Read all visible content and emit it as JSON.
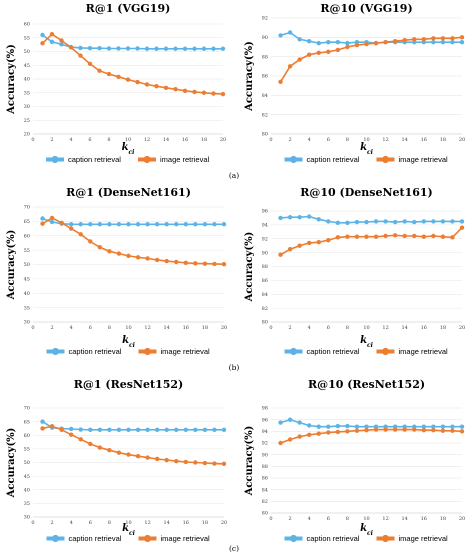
{
  "colors": {
    "caption": "#5bb4e5",
    "image": "#ed7d31"
  },
  "legend": {
    "caption": "caption retrieval",
    "image": "image retrieval"
  },
  "subfigure_labels": [
    "(a)",
    "(b)",
    "(c)"
  ],
  "chart_data": [
    {
      "type": "line",
      "title": "R@1 (VGG19)",
      "xlabel": "k_{ci}",
      "xlabel_main": "k",
      "xlabel_sub": "ci",
      "ylabel": "Accuracy(%)",
      "x": [
        1,
        2,
        3,
        4,
        5,
        6,
        7,
        8,
        9,
        10,
        11,
        12,
        13,
        14,
        15,
        16,
        17,
        18,
        19,
        20
      ],
      "xticks": [
        0,
        2,
        4,
        6,
        8,
        10,
        12,
        14,
        16,
        18,
        20
      ],
      "xlim": [
        0,
        20
      ],
      "ylim": [
        20,
        60
      ],
      "yticks": [
        20,
        25,
        30,
        35,
        40,
        45,
        50,
        55,
        60
      ],
      "series": [
        {
          "name": "caption retrieval",
          "values": [
            56.0,
            53.5,
            52.6,
            51.6,
            51.3,
            51.2,
            51.2,
            51.1,
            51.1,
            51.1,
            51.1,
            51.0,
            51.0,
            51.0,
            51.0,
            51.0,
            51.0,
            51.0,
            51.0,
            51.0
          ]
        },
        {
          "name": "image retrieval",
          "values": [
            53.0,
            56.3,
            54.0,
            51.5,
            48.5,
            45.5,
            43.0,
            41.8,
            40.8,
            39.8,
            38.9,
            38.0,
            37.4,
            36.8,
            36.3,
            35.7,
            35.3,
            35.0,
            34.7,
            34.5
          ]
        }
      ]
    },
    {
      "type": "line",
      "title": "R@10 (VGG19)",
      "xlabel": "k_{ci}",
      "xlabel_main": "k",
      "xlabel_sub": "ci",
      "ylabel": "Accuracy(%)",
      "x": [
        1,
        2,
        3,
        4,
        5,
        6,
        7,
        8,
        9,
        10,
        11,
        12,
        13,
        14,
        15,
        16,
        17,
        18,
        19,
        20
      ],
      "xticks": [
        0,
        2,
        4,
        6,
        8,
        10,
        12,
        14,
        16,
        18,
        20
      ],
      "xlim": [
        0,
        20
      ],
      "ylim": [
        80,
        92
      ],
      "yticks": [
        80,
        82,
        84,
        86,
        88,
        90,
        92
      ],
      "series": [
        {
          "name": "caption retrieval",
          "values": [
            90.2,
            90.5,
            89.8,
            89.6,
            89.4,
            89.5,
            89.5,
            89.4,
            89.5,
            89.5,
            89.4,
            89.5,
            89.5,
            89.5,
            89.5,
            89.5,
            89.5,
            89.5,
            89.5,
            89.5
          ]
        },
        {
          "name": "image retrieval",
          "values": [
            85.4,
            87.0,
            87.7,
            88.2,
            88.4,
            88.5,
            88.7,
            89.0,
            89.2,
            89.3,
            89.4,
            89.5,
            89.6,
            89.7,
            89.8,
            89.8,
            89.9,
            89.9,
            89.9,
            90.0
          ]
        }
      ]
    },
    {
      "type": "line",
      "title": "R@1 (DenseNet161)",
      "xlabel": "k_{ci}",
      "xlabel_main": "k",
      "xlabel_sub": "ci",
      "ylabel": "Accuracy(%)",
      "x": [
        1,
        2,
        3,
        4,
        5,
        6,
        7,
        8,
        9,
        10,
        11,
        12,
        13,
        14,
        15,
        16,
        17,
        18,
        19,
        20
      ],
      "xticks": [
        0,
        2,
        4,
        6,
        8,
        10,
        12,
        14,
        16,
        18,
        20
      ],
      "xlim": [
        0,
        20
      ],
      "ylim": [
        30,
        70
      ],
      "yticks": [
        30,
        35,
        40,
        45,
        50,
        55,
        60,
        65,
        70
      ],
      "series": [
        {
          "name": "caption retrieval",
          "values": [
            66.0,
            64.8,
            64.2,
            64.0,
            64.0,
            64.0,
            64.0,
            64.0,
            64.0,
            64.0,
            64.0,
            64.0,
            64.0,
            64.0,
            64.0,
            64.0,
            64.0,
            64.0,
            64.0,
            64.0
          ]
        },
        {
          "name": "image retrieval",
          "values": [
            64.2,
            66.2,
            64.5,
            62.5,
            60.5,
            58.0,
            56.0,
            54.6,
            53.8,
            53.0,
            52.5,
            52.1,
            51.6,
            51.2,
            50.9,
            50.6,
            50.4,
            50.3,
            50.2,
            50.1
          ]
        }
      ]
    },
    {
      "type": "line",
      "title": "R@10 (DenseNet161)",
      "xlabel": "k_{ci}",
      "xlabel_main": "k",
      "xlabel_sub": "ci",
      "ylabel": "Accuracy(%)",
      "x": [
        1,
        2,
        3,
        4,
        5,
        6,
        7,
        8,
        9,
        10,
        11,
        12,
        13,
        14,
        15,
        16,
        17,
        18,
        19,
        20
      ],
      "xticks": [
        0,
        2,
        4,
        6,
        8,
        10,
        12,
        14,
        16,
        18,
        20
      ],
      "xlim": [
        0,
        20
      ],
      "ylim": [
        80,
        96
      ],
      "yticks": [
        80,
        82,
        84,
        86,
        88,
        90,
        92,
        94,
        96
      ],
      "series": [
        {
          "name": "caption retrieval",
          "values": [
            95.0,
            95.1,
            95.1,
            95.2,
            94.8,
            94.5,
            94.3,
            94.3,
            94.4,
            94.4,
            94.5,
            94.5,
            94.4,
            94.5,
            94.4,
            94.5,
            94.5,
            94.5,
            94.5,
            94.5
          ]
        },
        {
          "name": "image retrieval",
          "values": [
            89.7,
            90.5,
            91.0,
            91.4,
            91.5,
            91.8,
            92.2,
            92.3,
            92.3,
            92.3,
            92.3,
            92.4,
            92.5,
            92.4,
            92.4,
            92.3,
            92.4,
            92.3,
            92.2,
            93.6
          ]
        }
      ]
    },
    {
      "type": "line",
      "title": "R@1 (ResNet152)",
      "xlabel": "k_{ci}",
      "xlabel_main": "k",
      "xlabel_sub": "ci",
      "ylabel": "Accuracy(%)",
      "x": [
        1,
        2,
        3,
        4,
        5,
        6,
        7,
        8,
        9,
        10,
        11,
        12,
        13,
        14,
        15,
        16,
        17,
        18,
        19,
        20
      ],
      "xticks": [
        0,
        2,
        4,
        6,
        8,
        10,
        12,
        14,
        16,
        18,
        20
      ],
      "xlim": [
        0,
        20
      ],
      "ylim": [
        30,
        70
      ],
      "yticks": [
        30,
        35,
        40,
        45,
        50,
        55,
        60,
        65,
        70
      ],
      "series": [
        {
          "name": "caption retrieval",
          "values": [
            65.0,
            62.8,
            62.4,
            62.3,
            62.1,
            62.0,
            62.0,
            62.0,
            62.0,
            62.0,
            62.0,
            62.0,
            62.0,
            62.0,
            62.0,
            62.0,
            62.0,
            62.0,
            62.0,
            62.0
          ]
        },
        {
          "name": "image retrieval",
          "values": [
            62.5,
            63.3,
            62.0,
            60.2,
            58.5,
            56.8,
            55.5,
            54.5,
            53.6,
            52.9,
            52.3,
            51.8,
            51.3,
            50.9,
            50.5,
            50.2,
            50.0,
            49.8,
            49.6,
            49.5
          ]
        }
      ]
    },
    {
      "type": "line",
      "title": "R@10 (ResNet152)",
      "xlabel": "k_{ci}",
      "xlabel_main": "k",
      "xlabel_sub": "ci",
      "ylabel": "Accuracy(%)",
      "x": [
        1,
        2,
        3,
        4,
        5,
        6,
        7,
        8,
        9,
        10,
        11,
        12,
        13,
        14,
        15,
        16,
        17,
        18,
        19,
        20
      ],
      "xticks": [
        0,
        2,
        4,
        6,
        8,
        10,
        12,
        14,
        16,
        18,
        20
      ],
      "xlim": [
        0,
        20
      ],
      "ylim": [
        80,
        98
      ],
      "yticks": [
        80,
        82,
        84,
        86,
        88,
        90,
        92,
        94,
        96,
        98
      ],
      "series": [
        {
          "name": "caption retrieval",
          "values": [
            95.5,
            96.0,
            95.5,
            95.0,
            94.8,
            94.8,
            94.9,
            94.9,
            94.8,
            94.8,
            94.8,
            94.8,
            94.8,
            94.8,
            94.8,
            94.8,
            94.8,
            94.8,
            94.8,
            94.8
          ]
        },
        {
          "name": "image retrieval",
          "values": [
            92.0,
            92.6,
            93.1,
            93.4,
            93.6,
            93.8,
            93.9,
            94.0,
            94.1,
            94.2,
            94.3,
            94.3,
            94.3,
            94.3,
            94.3,
            94.2,
            94.2,
            94.1,
            94.1,
            94.0
          ]
        }
      ]
    }
  ]
}
